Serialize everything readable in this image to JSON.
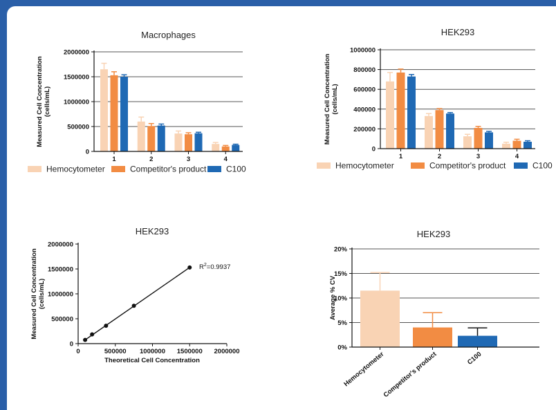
{
  "colors": {
    "hemocytometer": "#f9d3b4",
    "competitor": "#f28c43",
    "c100": "#1f69b4",
    "frame": "#2a5fa8"
  },
  "legend": [
    "Hemocytometer",
    "Competitor's product",
    "C100"
  ],
  "chart_data": [
    {
      "id": "macro",
      "type": "bar",
      "title": "Macrophages",
      "ylabel": [
        "Measured Cell Concentration",
        "(cells/mL)"
      ],
      "categories": [
        "1",
        "2",
        "3",
        "4"
      ],
      "ylim": [
        0,
        2000000
      ],
      "yticks": [
        "0",
        "500000",
        "1000000",
        "1500000",
        "2000000"
      ],
      "grid": true,
      "series": [
        {
          "name": "Hemocytometer",
          "values": [
            1650000,
            600000,
            360000,
            150000
          ],
          "errors": [
            120000,
            90000,
            50000,
            30000
          ]
        },
        {
          "name": "Competitor's product",
          "values": [
            1530000,
            510000,
            345000,
            100000
          ],
          "errors": [
            70000,
            50000,
            30000,
            20000
          ]
        },
        {
          "name": "C100",
          "values": [
            1500000,
            520000,
            365000,
            130000
          ],
          "errors": [
            40000,
            30000,
            20000,
            15000
          ]
        }
      ]
    },
    {
      "id": "hek1",
      "type": "bar",
      "title": "HEK293",
      "ylabel": [
        "Measured Cell Concentration",
        "(cells/mL)"
      ],
      "categories": [
        "1",
        "2",
        "3",
        "4"
      ],
      "ylim": [
        0,
        1000000
      ],
      "yticks": [
        "0",
        "200000",
        "400000",
        "600000",
        "800000",
        "1000000"
      ],
      "grid": true,
      "series": [
        {
          "name": "Hemocytometer",
          "values": [
            680000,
            330000,
            125000,
            50000
          ],
          "errors": [
            90000,
            25000,
            20000,
            15000
          ]
        },
        {
          "name": "Competitor's product",
          "values": [
            770000,
            390000,
            210000,
            80000
          ],
          "errors": [
            35000,
            15000,
            15000,
            15000
          ]
        },
        {
          "name": "C100",
          "values": [
            730000,
            355000,
            165000,
            70000
          ],
          "errors": [
            20000,
            10000,
            10000,
            10000
          ]
        }
      ]
    },
    {
      "id": "scatter",
      "type": "scatter",
      "title": "HEK293",
      "xlabel": "Theoretical Cell Concentration",
      "ylabel": [
        "Measured Cell Concentration",
        "(cells/mL)"
      ],
      "xlim": [
        0,
        2000000
      ],
      "ylim": [
        0,
        2000000
      ],
      "xticks": [
        "0",
        "500000",
        "1000000",
        "1500000",
        "2000000"
      ],
      "yticks": [
        "0",
        "500000",
        "1000000",
        "1500000",
        "2000000"
      ],
      "x": [
        93750,
        187500,
        375000,
        750000,
        1500000
      ],
      "y": [
        75000,
        185000,
        360000,
        760000,
        1530000
      ],
      "annotation": {
        "prefix": "R",
        "sup": "2",
        "suffix": "=0.9937"
      }
    },
    {
      "id": "cv",
      "type": "bar",
      "title": "HEK293",
      "ylabel": [
        "Average % CV"
      ],
      "categories": [
        "Hemocytometer",
        "Competitor's product",
        "C100"
      ],
      "values": [
        11.5,
        4.0,
        2.3
      ],
      "errors": [
        3.7,
        3.0,
        1.6
      ],
      "ylim": [
        0,
        20
      ],
      "yticks": [
        "0%",
        "5%",
        "10%",
        "15%",
        "20%"
      ],
      "grid": true
    }
  ]
}
